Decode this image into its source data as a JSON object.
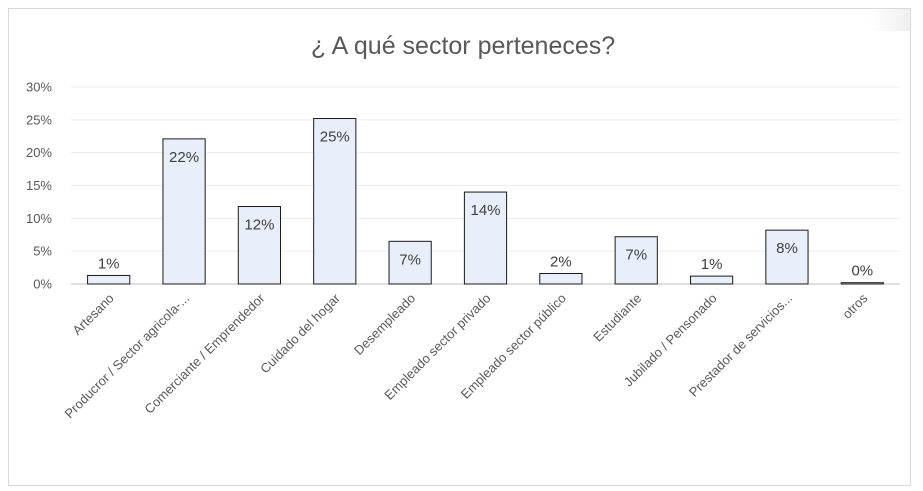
{
  "chart_data": {
    "type": "bar",
    "title": "¿ A qué sector perteneces?",
    "xlabel": "",
    "ylabel": "",
    "ylim": [
      0,
      30
    ],
    "yticks": [
      "0%",
      "5%",
      "10%",
      "15%",
      "20%",
      "25%",
      "30%"
    ],
    "categories": [
      "Artesano",
      "Producror / Sector agricola-...",
      "Comerciante / Emprendedor",
      "Cuidado del hogar",
      "Desempleado",
      "Empleado sector privado",
      "Empleado sector público",
      "Estudiante",
      "Jubilado / Pensonado",
      "Prestador de servicios...",
      "otros"
    ],
    "values": [
      1.3,
      22.1,
      11.8,
      25.2,
      6.5,
      14.0,
      1.6,
      7.2,
      1.2,
      8.2,
      0.2
    ],
    "data_labels": [
      "1%",
      "22%",
      "12%",
      "25%",
      "7%",
      "14%",
      "2%",
      "7%",
      "1%",
      "8%",
      "0%"
    ],
    "grid": true,
    "legend": "none",
    "colors": {
      "bar_fill": "#e9effa",
      "bar_stroke": "#1a1a1a",
      "text": "#595959"
    }
  }
}
